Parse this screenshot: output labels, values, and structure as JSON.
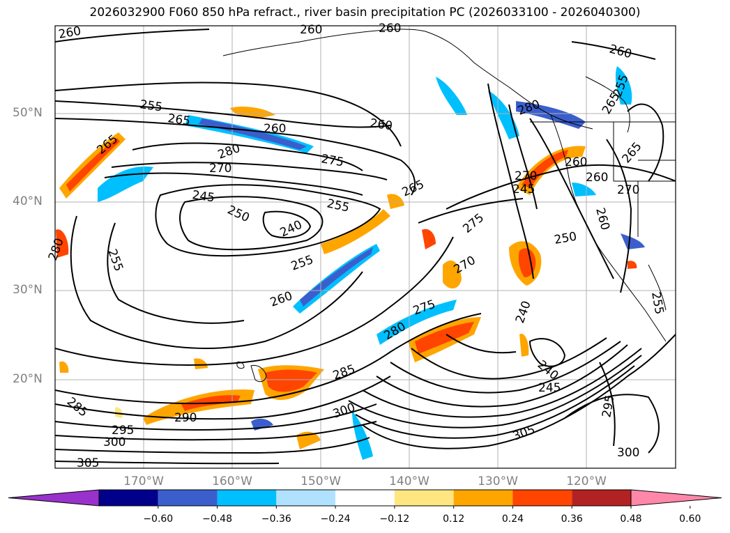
{
  "title": "2026032900 F060 850 hPa refract., river basin precipitation PC (2026033100 - 2026040300)",
  "lat_labels": [
    "50°N",
    "40°N",
    "30°N",
    "20°N"
  ],
  "lon_labels": [
    "170°W",
    "160°W",
    "150°W",
    "140°W",
    "130°W",
    "120°W"
  ],
  "colorbar": {
    "ticks": [
      "−0.60",
      "−0.48",
      "−0.36",
      "−0.24",
      "−0.12",
      "0.12",
      "0.24",
      "0.36",
      "0.48",
      "0.60"
    ],
    "colors": [
      "#9932cc",
      "#00008b",
      "#3a5fcd",
      "#00bfff",
      "#b0e2ff",
      "#ffffff",
      "#ffe680",
      "#ffa500",
      "#ff4500",
      "#b22222",
      "#ff88aa"
    ]
  },
  "contour_labels": [
    "260",
    "260",
    "260",
    "260",
    "255",
    "265",
    "260",
    "260",
    "265",
    "280",
    "275",
    "270",
    "245",
    "255",
    "250",
    "240",
    "265",
    "275",
    "280",
    "255",
    "260",
    "270",
    "275",
    "280",
    "255",
    "245",
    "240",
    "270",
    "260",
    "250",
    "240",
    "285",
    "290",
    "295",
    "300",
    "305",
    "300",
    "305",
    "245",
    "295",
    "300",
    "255",
    "265",
    "255",
    "260",
    "265",
    "270",
    "280",
    "260",
    "285"
  ]
}
